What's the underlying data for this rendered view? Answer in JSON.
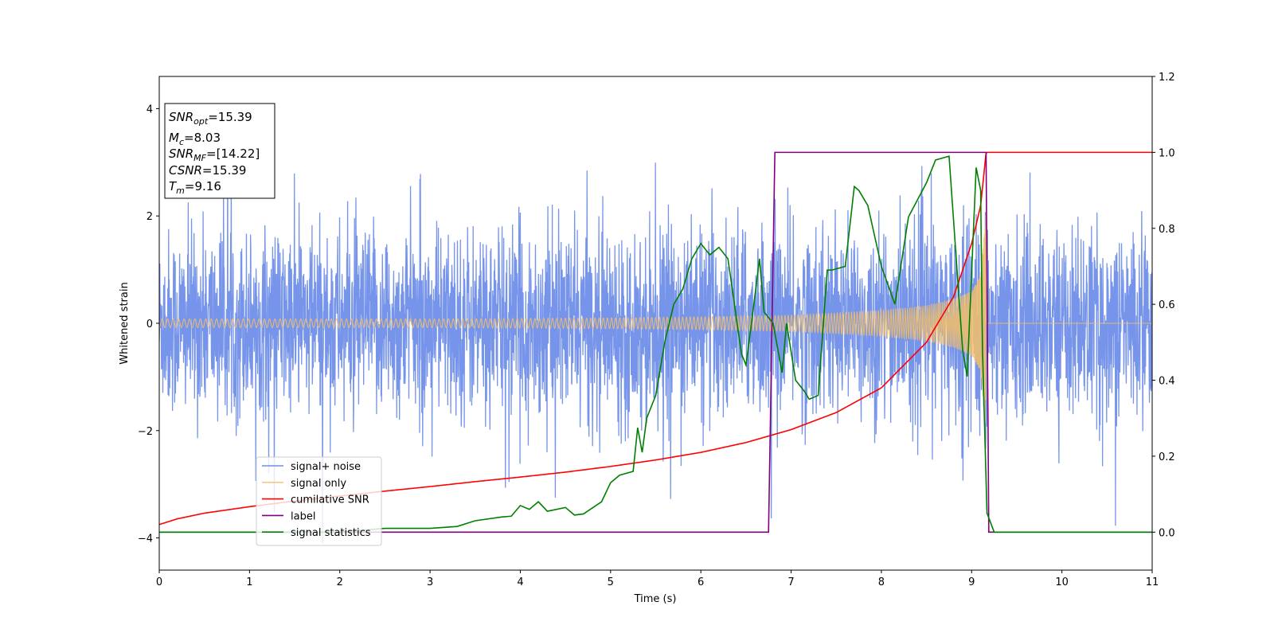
{
  "chart_data": {
    "type": "line",
    "xlabel": "Time (s)",
    "ylabel": "Whitened strain",
    "xlim": [
      0,
      11
    ],
    "ylim_left": [
      -4.6,
      4.6
    ],
    "ylim_right": [
      -0.1,
      1.2
    ],
    "x_ticks": [
      "0",
      "1",
      "2",
      "3",
      "4",
      "5",
      "6",
      "7",
      "8",
      "9",
      "10",
      "11"
    ],
    "y_ticks_left": [
      "4",
      "2",
      "0",
      "−2",
      "−4"
    ],
    "y_ticks_right": [
      "1.2",
      "1.0",
      "0.8",
      "0.6",
      "0.4",
      "0.2",
      "0.0"
    ],
    "legend_position": "lower-left",
    "grid": false,
    "annotation": {
      "snr_opt": "=15.39",
      "mc": "=8.03",
      "snr_mf": "=[14.22]",
      "csnr": "=15.39",
      "tm": "=9.16"
    },
    "series": [
      {
        "name": "signal+ noise",
        "axis": "left",
        "color": "#6f8ee8",
        "x_range": [
          0,
          11
        ],
        "noise_amplitude": 1.8,
        "approx_range": [
          -4.1,
          4.2
        ]
      },
      {
        "name": "signal only",
        "axis": "left",
        "color": "#f5c06a",
        "envelope": {
          "x": [
            0,
            1,
            2,
            3,
            4,
            5,
            6,
            7,
            7.5,
            8,
            8.5,
            8.8,
            9.0,
            9.1,
            9.16,
            9.17,
            11
          ],
          "amplitude": [
            0.08,
            0.08,
            0.08,
            0.08,
            0.09,
            0.1,
            0.12,
            0.15,
            0.19,
            0.24,
            0.33,
            0.45,
            0.6,
            0.9,
            2.1,
            0,
            0
          ]
        }
      },
      {
        "name": "cumilative SNR",
        "axis": "right",
        "color": "#ff0000",
        "x": [
          0,
          0.2,
          0.5,
          1,
          1.5,
          2,
          2.5,
          3,
          3.5,
          4,
          4.5,
          5,
          5.5,
          6,
          6.5,
          7,
          7.5,
          8,
          8.5,
          8.8,
          9.0,
          9.1,
          9.16,
          9.2,
          11
        ],
        "values": [
          0.02,
          0.035,
          0.05,
          0.067,
          0.082,
          0.095,
          0.108,
          0.12,
          0.133,
          0.145,
          0.158,
          0.173,
          0.19,
          0.21,
          0.236,
          0.27,
          0.315,
          0.38,
          0.5,
          0.62,
          0.76,
          0.86,
          1.0,
          1.0,
          1.0
        ]
      },
      {
        "name": "label",
        "axis": "right",
        "color": "#800080",
        "x": [
          0,
          6.75,
          6.82,
          9.16,
          9.19,
          11
        ],
        "values": [
          0.0,
          0.0,
          1.0,
          1.0,
          0.0,
          0.0
        ]
      },
      {
        "name": "signal statistics",
        "axis": "right",
        "color": "#008000",
        "x": [
          0,
          1,
          2,
          2.5,
          3,
          3.3,
          3.5,
          3.8,
          3.9,
          4.0,
          4.1,
          4.2,
          4.3,
          4.5,
          4.6,
          4.7,
          4.9,
          5.0,
          5.1,
          5.25,
          5.3,
          5.35,
          5.4,
          5.5,
          5.6,
          5.7,
          5.8,
          5.9,
          6.0,
          6.1,
          6.2,
          6.3,
          6.45,
          6.5,
          6.55,
          6.65,
          6.7,
          6.8,
          6.9,
          6.95,
          7.05,
          7.15,
          7.2,
          7.3,
          7.4,
          7.45,
          7.6,
          7.7,
          7.75,
          7.85,
          8.0,
          8.15,
          8.3,
          8.5,
          8.6,
          8.75,
          8.9,
          8.95,
          9.05,
          9.1,
          9.12,
          9.17,
          9.25,
          11
        ],
        "values": [
          0.0,
          0.0,
          0.0,
          0.01,
          0.01,
          0.015,
          0.03,
          0.04,
          0.042,
          0.07,
          0.06,
          0.08,
          0.055,
          0.065,
          0.045,
          0.048,
          0.08,
          0.13,
          0.15,
          0.16,
          0.275,
          0.21,
          0.3,
          0.36,
          0.5,
          0.6,
          0.64,
          0.72,
          0.76,
          0.73,
          0.75,
          0.72,
          0.47,
          0.44,
          0.53,
          0.72,
          0.58,
          0.55,
          0.42,
          0.55,
          0.4,
          0.37,
          0.35,
          0.36,
          0.69,
          0.69,
          0.7,
          0.91,
          0.9,
          0.86,
          0.7,
          0.6,
          0.83,
          0.92,
          0.98,
          0.99,
          0.48,
          0.41,
          0.96,
          0.9,
          0.48,
          0.05,
          0.0,
          0.0
        ]
      }
    ]
  }
}
